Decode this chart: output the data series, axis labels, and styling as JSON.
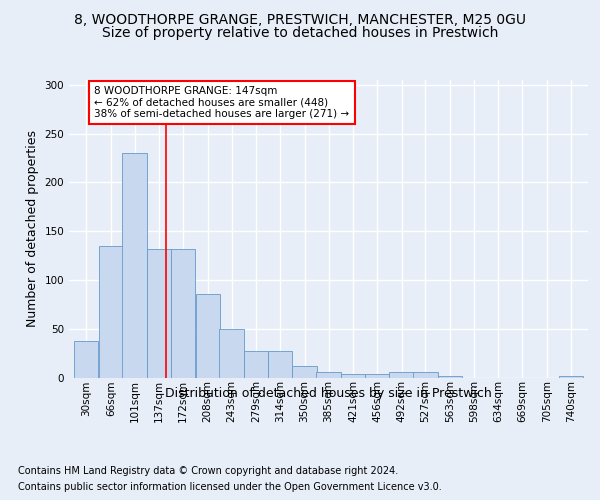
{
  "title_line1": "8, WOODTHORPE GRANGE, PRESTWICH, MANCHESTER, M25 0GU",
  "title_line2": "Size of property relative to detached houses in Prestwich",
  "xlabel": "Distribution of detached houses by size in Prestwich",
  "ylabel": "Number of detached properties",
  "footer_line1": "Contains HM Land Registry data © Crown copyright and database right 2024.",
  "footer_line2": "Contains public sector information licensed under the Open Government Licence v3.0.",
  "bar_labels": [
    "30sqm",
    "66sqm",
    "101sqm",
    "137sqm",
    "172sqm",
    "208sqm",
    "243sqm",
    "279sqm",
    "314sqm",
    "350sqm",
    "385sqm",
    "421sqm",
    "456sqm",
    "492sqm",
    "527sqm",
    "563sqm",
    "598sqm",
    "634sqm",
    "669sqm",
    "705sqm",
    "740sqm"
  ],
  "bar_values": [
    37,
    135,
    230,
    132,
    132,
    86,
    50,
    27,
    27,
    12,
    6,
    4,
    4,
    6,
    6,
    2,
    0,
    0,
    0,
    0,
    2
  ],
  "bar_color": "#c8d8ee",
  "bar_edge_color": "#6699cc",
  "annotation_text": "8 WOODTHORPE GRANGE: 147sqm\n← 62% of detached houses are smaller (448)\n38% of semi-detached houses are larger (271) →",
  "annotation_box_color": "white",
  "annotation_box_edge": "red",
  "property_line_x": 147,
  "property_line_color": "red",
  "ylim": [
    0,
    305
  ],
  "background_color": "#e8eef8",
  "plot_bg_color": "#e8eef8",
  "grid_color": "white",
  "title_fontsize": 10,
  "subtitle_fontsize": 10,
  "ylabel_fontsize": 9,
  "xlabel_fontsize": 9,
  "tick_fontsize": 7.5,
  "annotation_fontsize": 7.5,
  "footer_fontsize": 7
}
